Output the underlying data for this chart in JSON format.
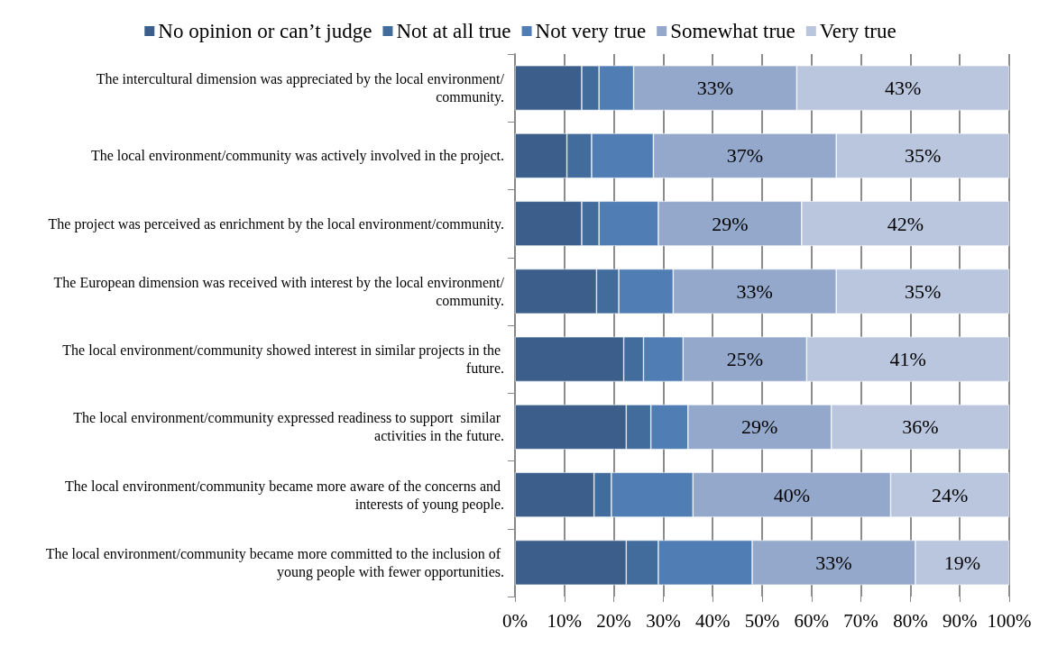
{
  "chart_data": {
    "type": "bar",
    "orientation": "horizontal",
    "stacked": true,
    "categories": [
      "The intercultural dimension was appreciated by the local environment/community.",
      "The local environment/community was actively involved in the project.",
      "The project was perceived as enrichment by the local environment/community.",
      "The European dimension was received with interest by the local environment/community.",
      "The local environment/community showed interest in similar projects in the future.",
      "The local environment/community expressed readiness to support  similar activities in the future.",
      "The local environment/community became more aware of the concerns and interests of young people.",
      "The local environment/community became more committed to the inclusion of young people with fewer opportunities."
    ],
    "series": [
      {
        "name": "No opinion or can’t judge",
        "color": "#3b5e8a",
        "values": [
          13.5,
          10.5,
          13.5,
          16.5,
          22,
          22.5,
          16,
          22.5
        ]
      },
      {
        "name": "Not at all true",
        "color": "#416c9c",
        "values": [
          3.5,
          5,
          3.5,
          4.5,
          4,
          5,
          3.5,
          6.5
        ]
      },
      {
        "name": "Not very true",
        "color": "#4f7db4",
        "values": [
          7,
          12.5,
          12,
          11,
          8,
          7.5,
          16.5,
          19
        ]
      },
      {
        "name": "Somewhat true",
        "color": "#93a8cb",
        "values": [
          33,
          37,
          29,
          33,
          25,
          29,
          40,
          33
        ],
        "value_labels": [
          "33%",
          "37%",
          "29%",
          "33%",
          "25%",
          "29%",
          "40%",
          "33%"
        ]
      },
      {
        "name": "Very true",
        "color": "#b9c6de",
        "values": [
          43,
          35,
          42,
          35,
          41,
          36,
          24,
          19
        ],
        "value_labels": [
          "43%",
          "35%",
          "42%",
          "35%",
          "41%",
          "36%",
          "24%",
          "19%"
        ]
      }
    ],
    "xlim": [
      0,
      100
    ],
    "xticks": [
      {
        "value": 0,
        "label": "0%"
      },
      {
        "value": 10,
        "label": "10%"
      },
      {
        "value": 20,
        "label": "20%"
      },
      {
        "value": 30,
        "label": "30%"
      },
      {
        "value": 40,
        "label": "40%"
      },
      {
        "value": 50,
        "label": "50%"
      },
      {
        "value": 60,
        "label": "60%"
      },
      {
        "value": 70,
        "label": "70%"
      },
      {
        "value": 80,
        "label": "80%"
      },
      {
        "value": 90,
        "label": "90%"
      },
      {
        "value": 100,
        "label": "100%"
      }
    ],
    "grid": "x",
    "legend": "top"
  }
}
